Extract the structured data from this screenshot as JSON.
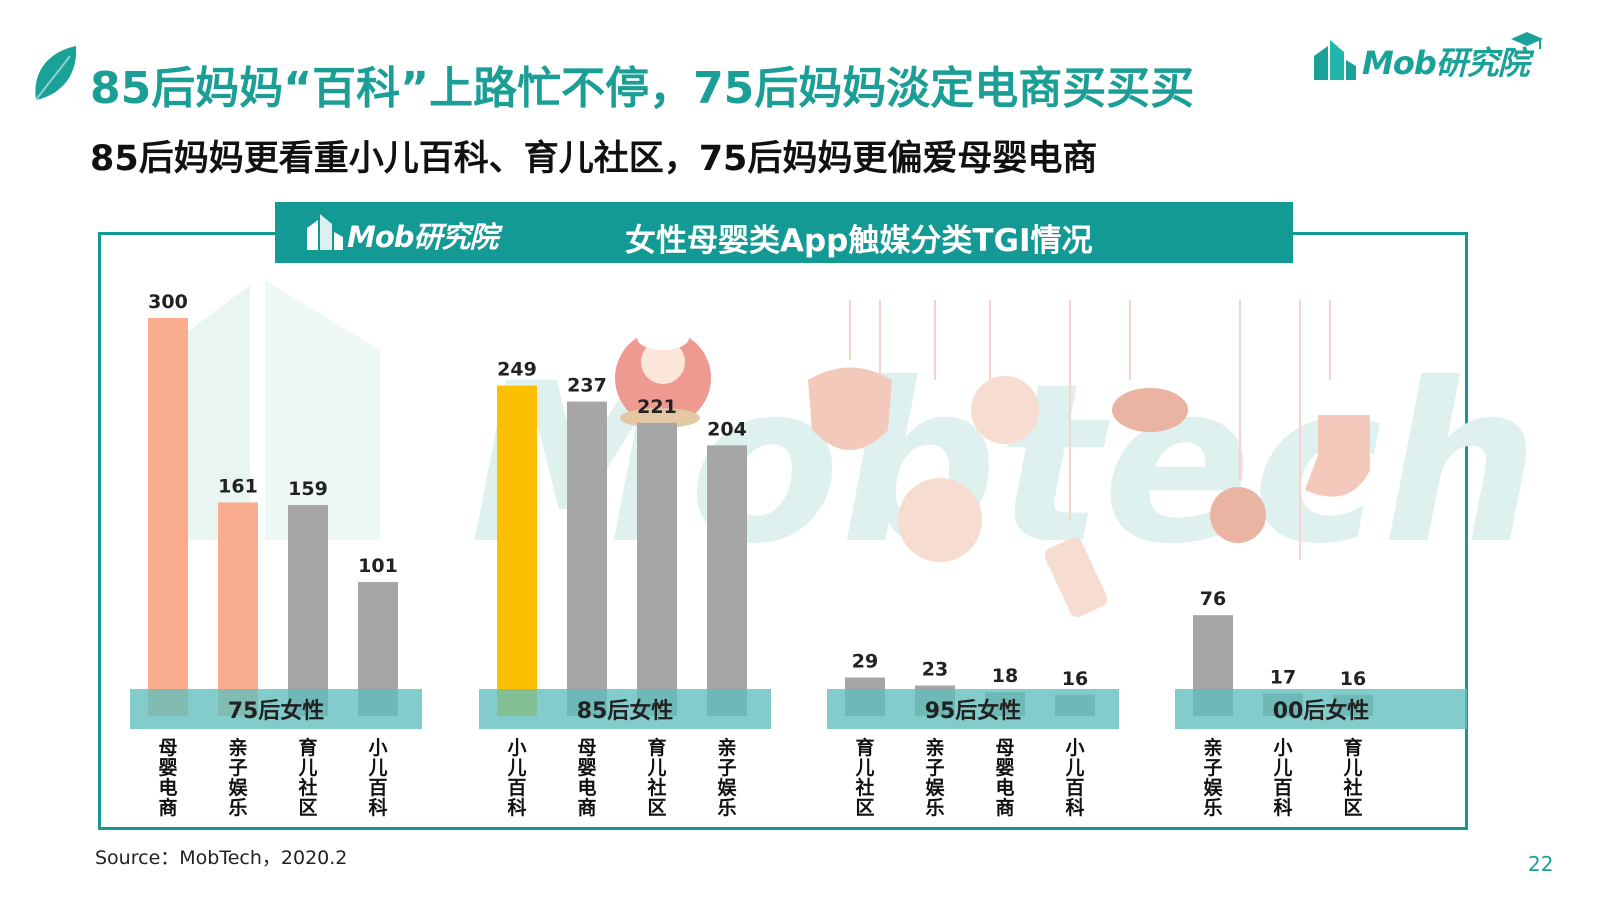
{
  "header": {
    "title": "85后妈妈“百科”上路忙不停，75后妈妈淡定电商买买买",
    "subtitle": "85后妈妈更看重小儿百科、育儿社区，75后妈妈更偏爱母婴电商",
    "logo_text": "Mob研究院"
  },
  "banner": {
    "logo_text": "Mob研究院",
    "chart_title": "女性母婴类App触媒分类TGI情况"
  },
  "watermark": "Mobtech",
  "colors": {
    "teal": "#139a94",
    "highlight_75": "#f9ad8e",
    "highlight_85": "#fdc000",
    "default_bar": "#a6a6a6",
    "group_band": "#5fbfbd"
  },
  "chart_data": {
    "type": "bar",
    "title": "女性母婴类App触媒分类TGI情况",
    "ylim": [
      0,
      300
    ],
    "grid": false,
    "groups": [
      {
        "name": "75后女性",
        "categories": [
          "母婴电商",
          "亲子娱乐",
          "育儿社区",
          "小儿百科"
        ],
        "values": [
          300,
          161,
          159,
          101
        ],
        "colors": [
          "#f9ad8e",
          "#f9ad8e",
          "#a6a6a6",
          "#a6a6a6"
        ]
      },
      {
        "name": "85后女性",
        "categories": [
          "小儿百科",
          "母婴电商",
          "育儿社区",
          "亲子娱乐"
        ],
        "values": [
          249,
          237,
          221,
          204
        ],
        "colors": [
          "#fdc000",
          "#a6a6a6",
          "#a6a6a6",
          "#a6a6a6"
        ]
      },
      {
        "name": "95后女性",
        "categories": [
          "育儿社区",
          "亲子娱乐",
          "母婴电商",
          "小儿百科"
        ],
        "values": [
          29,
          23,
          18,
          16
        ],
        "colors": [
          "#a6a6a6",
          "#a6a6a6",
          "#a6a6a6",
          "#a6a6a6"
        ]
      },
      {
        "name": "00后女性",
        "categories": [
          "亲子娱乐",
          "小儿百科",
          "育儿社区"
        ],
        "values": [
          76,
          17,
          16
        ],
        "colors": [
          "#a6a6a6",
          "#a6a6a6",
          "#a6a6a6"
        ]
      }
    ]
  },
  "footer": {
    "source": "Source：MobTech，2020.2",
    "page_number": "22"
  }
}
